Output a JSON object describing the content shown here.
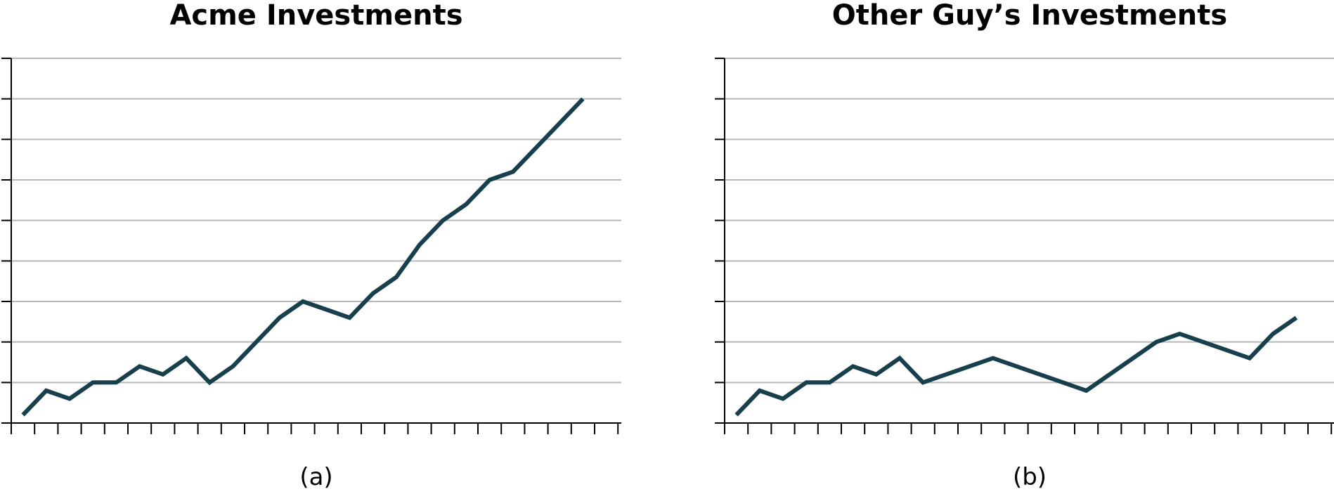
{
  "colors": {
    "line": "#173f4c",
    "grid": "#b8b8b8",
    "axis": "#000000"
  },
  "chart_data": [
    {
      "type": "line",
      "title": "Acme Investments",
      "caption": "(a)",
      "xlabel": "",
      "ylabel": "",
      "xlim": [
        0,
        26
      ],
      "ylim": [
        0,
        9
      ],
      "grid": true,
      "y_ticks": [
        0,
        1,
        2,
        3,
        4,
        5,
        6,
        7,
        8,
        9
      ],
      "x_ticks": [
        0,
        1,
        2,
        3,
        4,
        5,
        6,
        7,
        8,
        9,
        10,
        11,
        12,
        13,
        14,
        15,
        16,
        17,
        18,
        19,
        20,
        21,
        22,
        23,
        24,
        25,
        26
      ],
      "series": [
        {
          "x": [
            0.5,
            1.5,
            2.5,
            3.5,
            4.5,
            5.5,
            6.5,
            7.5,
            8.5,
            9.5,
            10.5,
            11.5,
            12.5,
            13.5,
            14.5,
            15.5,
            16.5,
            17.5,
            18.5,
            19.5,
            20.5,
            21.5,
            22.5,
            23.5,
            24.5
          ],
          "y": [
            0.2,
            0.8,
            0.6,
            1.0,
            1.0,
            1.4,
            1.2,
            1.6,
            1.0,
            1.4,
            2.0,
            2.6,
            3.0,
            2.8,
            2.6,
            3.2,
            3.6,
            4.4,
            5.0,
            5.4,
            6.0,
            6.2,
            6.8,
            7.4,
            8.0
          ]
        }
      ]
    },
    {
      "type": "line",
      "title": "Other Guy’s Investments",
      "caption": "(b)",
      "xlabel": "",
      "ylabel": "",
      "xlim": [
        0,
        26
      ],
      "ylim": [
        0,
        9
      ],
      "grid": true,
      "y_ticks": [
        0,
        1,
        2,
        3,
        4,
        5,
        6,
        7,
        8,
        9
      ],
      "x_ticks": [
        0,
        1,
        2,
        3,
        4,
        5,
        6,
        7,
        8,
        9,
        10,
        11,
        12,
        13,
        14,
        15,
        16,
        17,
        18,
        19,
        20,
        21,
        22,
        23,
        24,
        25,
        26
      ],
      "series": [
        {
          "x": [
            0.5,
            1.5,
            2.5,
            3.5,
            4.5,
            5.5,
            6.5,
            7.5,
            8.5,
            11.5,
            15.5,
            18.5,
            19.5,
            22.5,
            23.5,
            24.5
          ],
          "y": [
            0.2,
            0.8,
            0.6,
            1.0,
            1.0,
            1.4,
            1.2,
            1.6,
            1.0,
            1.6,
            0.8,
            2.0,
            2.2,
            1.6,
            2.2,
            2.6
          ]
        }
      ]
    }
  ]
}
